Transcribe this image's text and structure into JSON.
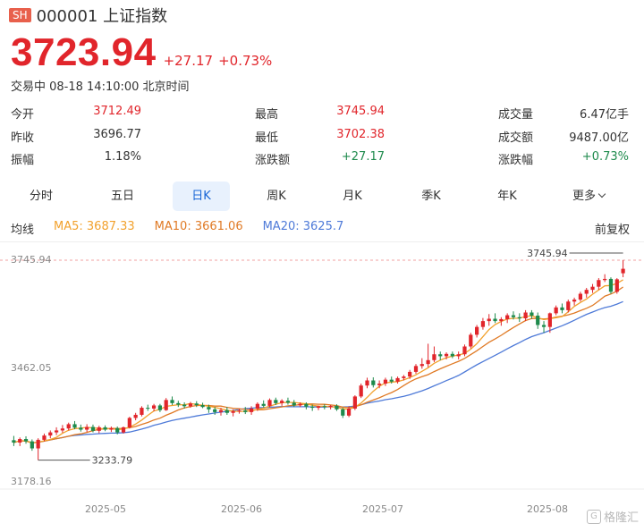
{
  "header": {
    "exchange_badge": "SH",
    "code_name": "000001 上证指数"
  },
  "quote": {
    "price": "3723.94",
    "change": "+27.17",
    "change_pct": "+0.73%",
    "status": "交易中 08-18 14:10:00 北京时间"
  },
  "stats": {
    "open_label": "今开",
    "open": "3712.49",
    "prev_label": "昨收",
    "prev": "3696.77",
    "amp_label": "振幅",
    "amp": "1.18%",
    "high_label": "最高",
    "high": "3745.94",
    "low_label": "最低",
    "low": "3702.38",
    "chg_amt_label": "涨跌额",
    "chg_amt": "+27.17",
    "vol_label": "成交量",
    "vol": "6.47亿手",
    "turnover_label": "成交额",
    "turnover": "9487.00亿",
    "chg_pct_label": "涨跌幅",
    "chg_pct": "+0.73%"
  },
  "tabs": [
    "分时",
    "五日",
    "日K",
    "周K",
    "月K",
    "季K",
    "年K",
    "更多"
  ],
  "active_tab": "日K",
  "ma_legend": {
    "label": "均线",
    "ma5": "MA5: 3687.33",
    "ma10": "MA10: 3661.06",
    "ma20": "MA20: 3625.7",
    "adjust": "前复权"
  },
  "colors": {
    "up": "#e1252b",
    "down": "#1e8a4c",
    "ma5": "#f2a12d",
    "ma10": "#e07a25",
    "ma20": "#4e7ad8",
    "active_tab": "#1a66d6"
  },
  "watermark": "格隆汇",
  "chart_data": {
    "type": "candlestick",
    "y_ticks": [
      "3745.94",
      "3462.05",
      "3178.16"
    ],
    "y_range": [
      3178.16,
      3745.94
    ],
    "x_ticks": [
      "2025-05",
      "2025-06",
      "2025-07",
      "2025-08"
    ],
    "annotations": {
      "max": "3745.94",
      "min": "3233.79"
    },
    "legend": [
      "MA5",
      "MA10",
      "MA20"
    ],
    "candles": [
      {
        "o": 3285,
        "h": 3296,
        "l": 3270,
        "c": 3279
      },
      {
        "o": 3279,
        "h": 3292,
        "l": 3270,
        "c": 3288
      },
      {
        "o": 3288,
        "h": 3295,
        "l": 3276,
        "c": 3282
      },
      {
        "o": 3282,
        "h": 3287,
        "l": 3258,
        "c": 3264
      },
      {
        "o": 3264,
        "h": 3290,
        "l": 3234,
        "c": 3286
      },
      {
        "o": 3286,
        "h": 3302,
        "l": 3282,
        "c": 3297
      },
      {
        "o": 3297,
        "h": 3310,
        "l": 3290,
        "c": 3305
      },
      {
        "o": 3305,
        "h": 3318,
        "l": 3298,
        "c": 3310
      },
      {
        "o": 3310,
        "h": 3324,
        "l": 3304,
        "c": 3315
      },
      {
        "o": 3315,
        "h": 3330,
        "l": 3310,
        "c": 3326
      },
      {
        "o": 3326,
        "h": 3334,
        "l": 3313,
        "c": 3317
      },
      {
        "o": 3317,
        "h": 3325,
        "l": 3307,
        "c": 3312
      },
      {
        "o": 3312,
        "h": 3326,
        "l": 3306,
        "c": 3319
      },
      {
        "o": 3319,
        "h": 3325,
        "l": 3305,
        "c": 3309
      },
      {
        "o": 3309,
        "h": 3322,
        "l": 3303,
        "c": 3318
      },
      {
        "o": 3318,
        "h": 3323,
        "l": 3308,
        "c": 3312
      },
      {
        "o": 3312,
        "h": 3320,
        "l": 3306,
        "c": 3316
      },
      {
        "o": 3316,
        "h": 3320,
        "l": 3300,
        "c": 3305
      },
      {
        "o": 3305,
        "h": 3320,
        "l": 3302,
        "c": 3318
      },
      {
        "o": 3318,
        "h": 3345,
        "l": 3315,
        "c": 3342
      },
      {
        "o": 3342,
        "h": 3355,
        "l": 3336,
        "c": 3350
      },
      {
        "o": 3350,
        "h": 3372,
        "l": 3346,
        "c": 3368
      },
      {
        "o": 3368,
        "h": 3376,
        "l": 3360,
        "c": 3366
      },
      {
        "o": 3366,
        "h": 3378,
        "l": 3359,
        "c": 3374
      },
      {
        "o": 3374,
        "h": 3378,
        "l": 3357,
        "c": 3362
      },
      {
        "o": 3362,
        "h": 3393,
        "l": 3360,
        "c": 3388
      },
      {
        "o": 3388,
        "h": 3397,
        "l": 3375,
        "c": 3380
      },
      {
        "o": 3380,
        "h": 3386,
        "l": 3370,
        "c": 3376
      },
      {
        "o": 3376,
        "h": 3382,
        "l": 3366,
        "c": 3372
      },
      {
        "o": 3372,
        "h": 3383,
        "l": 3368,
        "c": 3379
      },
      {
        "o": 3379,
        "h": 3385,
        "l": 3370,
        "c": 3375
      },
      {
        "o": 3375,
        "h": 3381,
        "l": 3367,
        "c": 3370
      },
      {
        "o": 3370,
        "h": 3376,
        "l": 3355,
        "c": 3364
      },
      {
        "o": 3364,
        "h": 3370,
        "l": 3350,
        "c": 3357
      },
      {
        "o": 3357,
        "h": 3368,
        "l": 3348,
        "c": 3362
      },
      {
        "o": 3362,
        "h": 3370,
        "l": 3350,
        "c": 3355
      },
      {
        "o": 3355,
        "h": 3364,
        "l": 3346,
        "c": 3359
      },
      {
        "o": 3359,
        "h": 3366,
        "l": 3353,
        "c": 3361
      },
      {
        "o": 3361,
        "h": 3370,
        "l": 3352,
        "c": 3357
      },
      {
        "o": 3357,
        "h": 3372,
        "l": 3350,
        "c": 3366
      },
      {
        "o": 3366,
        "h": 3382,
        "l": 3360,
        "c": 3378
      },
      {
        "o": 3378,
        "h": 3387,
        "l": 3369,
        "c": 3373
      },
      {
        "o": 3373,
        "h": 3392,
        "l": 3369,
        "c": 3388
      },
      {
        "o": 3388,
        "h": 3394,
        "l": 3375,
        "c": 3380
      },
      {
        "o": 3380,
        "h": 3390,
        "l": 3373,
        "c": 3386
      },
      {
        "o": 3386,
        "h": 3394,
        "l": 3376,
        "c": 3381
      },
      {
        "o": 3381,
        "h": 3388,
        "l": 3370,
        "c": 3374
      },
      {
        "o": 3374,
        "h": 3382,
        "l": 3370,
        "c": 3378
      },
      {
        "o": 3378,
        "h": 3382,
        "l": 3364,
        "c": 3371
      },
      {
        "o": 3371,
        "h": 3376,
        "l": 3360,
        "c": 3368
      },
      {
        "o": 3368,
        "h": 3374,
        "l": 3362,
        "c": 3372
      },
      {
        "o": 3372,
        "h": 3377,
        "l": 3364,
        "c": 3370
      },
      {
        "o": 3370,
        "h": 3375,
        "l": 3364,
        "c": 3373
      },
      {
        "o": 3373,
        "h": 3377,
        "l": 3360,
        "c": 3364
      },
      {
        "o": 3364,
        "h": 3368,
        "l": 3342,
        "c": 3348
      },
      {
        "o": 3348,
        "h": 3372,
        "l": 3344,
        "c": 3366
      },
      {
        "o": 3366,
        "h": 3400,
        "l": 3362,
        "c": 3397
      },
      {
        "o": 3397,
        "h": 3430,
        "l": 3393,
        "c": 3425
      },
      {
        "o": 3425,
        "h": 3445,
        "l": 3418,
        "c": 3438
      },
      {
        "o": 3438,
        "h": 3446,
        "l": 3420,
        "c": 3426
      },
      {
        "o": 3426,
        "h": 3438,
        "l": 3418,
        "c": 3430
      },
      {
        "o": 3430,
        "h": 3445,
        "l": 3424,
        "c": 3440
      },
      {
        "o": 3440,
        "h": 3448,
        "l": 3430,
        "c": 3435
      },
      {
        "o": 3435,
        "h": 3448,
        "l": 3430,
        "c": 3444
      },
      {
        "o": 3444,
        "h": 3452,
        "l": 3438,
        "c": 3448
      },
      {
        "o": 3448,
        "h": 3465,
        "l": 3442,
        "c": 3460
      },
      {
        "o": 3460,
        "h": 3480,
        "l": 3455,
        "c": 3475
      },
      {
        "o": 3475,
        "h": 3495,
        "l": 3468,
        "c": 3480
      },
      {
        "o": 3480,
        "h": 3532,
        "l": 3472,
        "c": 3490
      },
      {
        "o": 3490,
        "h": 3525,
        "l": 3485,
        "c": 3505
      },
      {
        "o": 3505,
        "h": 3512,
        "l": 3490,
        "c": 3500
      },
      {
        "o": 3500,
        "h": 3510,
        "l": 3492,
        "c": 3506
      },
      {
        "o": 3506,
        "h": 3512,
        "l": 3495,
        "c": 3500
      },
      {
        "o": 3500,
        "h": 3512,
        "l": 3492,
        "c": 3505
      },
      {
        "o": 3505,
        "h": 3530,
        "l": 3500,
        "c": 3525
      },
      {
        "o": 3525,
        "h": 3560,
        "l": 3520,
        "c": 3555
      },
      {
        "o": 3555,
        "h": 3580,
        "l": 3548,
        "c": 3575
      },
      {
        "o": 3575,
        "h": 3598,
        "l": 3568,
        "c": 3590
      },
      {
        "o": 3590,
        "h": 3608,
        "l": 3578,
        "c": 3596
      },
      {
        "o": 3596,
        "h": 3610,
        "l": 3585,
        "c": 3590
      },
      {
        "o": 3590,
        "h": 3600,
        "l": 3578,
        "c": 3595
      },
      {
        "o": 3595,
        "h": 3610,
        "l": 3585,
        "c": 3605
      },
      {
        "o": 3605,
        "h": 3615,
        "l": 3594,
        "c": 3600
      },
      {
        "o": 3600,
        "h": 3610,
        "l": 3588,
        "c": 3597
      },
      {
        "o": 3597,
        "h": 3618,
        "l": 3590,
        "c": 3612
      },
      {
        "o": 3612,
        "h": 3618,
        "l": 3596,
        "c": 3604
      },
      {
        "o": 3604,
        "h": 3612,
        "l": 3570,
        "c": 3580
      },
      {
        "o": 3580,
        "h": 3590,
        "l": 3560,
        "c": 3575
      },
      {
        "o": 3575,
        "h": 3612,
        "l": 3560,
        "c": 3610
      },
      {
        "o": 3610,
        "h": 3630,
        "l": 3605,
        "c": 3625
      },
      {
        "o": 3625,
        "h": 3635,
        "l": 3610,
        "c": 3618
      },
      {
        "o": 3618,
        "h": 3645,
        "l": 3612,
        "c": 3640
      },
      {
        "o": 3640,
        "h": 3650,
        "l": 3630,
        "c": 3645
      },
      {
        "o": 3645,
        "h": 3665,
        "l": 3640,
        "c": 3660
      },
      {
        "o": 3660,
        "h": 3675,
        "l": 3650,
        "c": 3670
      },
      {
        "o": 3670,
        "h": 3685,
        "l": 3662,
        "c": 3678
      },
      {
        "o": 3678,
        "h": 3700,
        "l": 3670,
        "c": 3695
      },
      {
        "o": 3695,
        "h": 3710,
        "l": 3690,
        "c": 3698
      },
      {
        "o": 3698,
        "h": 3702,
        "l": 3660,
        "c": 3665
      },
      {
        "o": 3665,
        "h": 3700,
        "l": 3660,
        "c": 3697
      },
      {
        "o": 3712.49,
        "h": 3745.94,
        "l": 3702.38,
        "c": 3723.94
      }
    ]
  }
}
